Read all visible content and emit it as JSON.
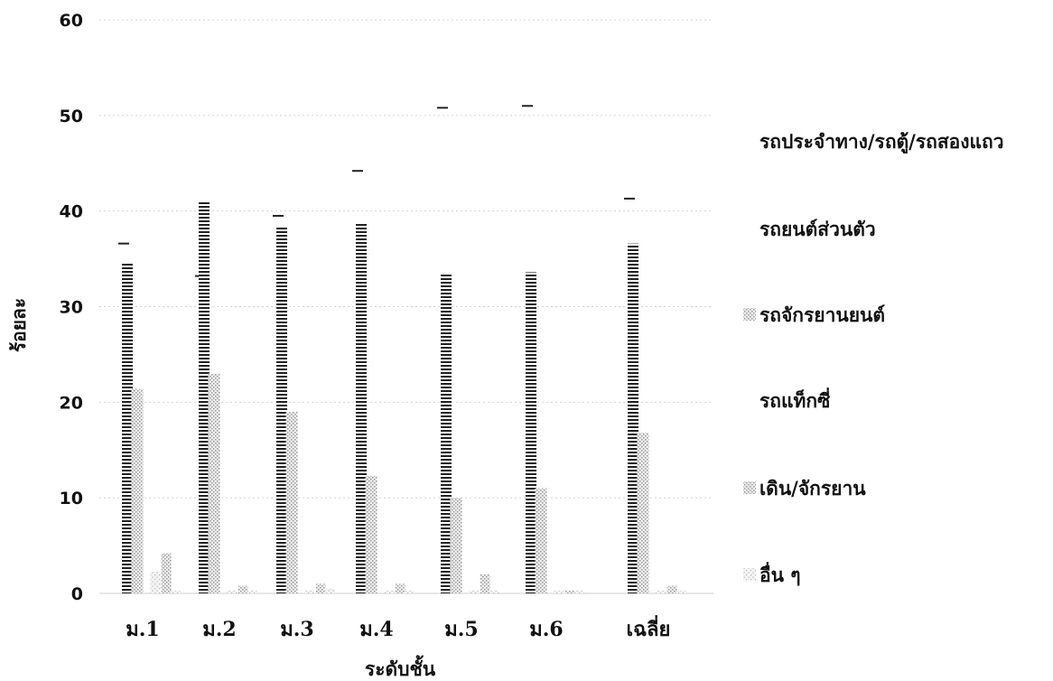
{
  "chart_data": {
    "type": "bar",
    "title": "",
    "xlabel": "ระดับชั้น",
    "ylabel": "ร้อยละ",
    "ylim": [
      0,
      60
    ],
    "yticks": [
      "0",
      "10",
      "20",
      "30",
      "40",
      "50",
      "60"
    ],
    "grid": true,
    "legend_position": "right",
    "categories": [
      "ม.1",
      "ม.2",
      "ม.3",
      "ม.4",
      "ม.5",
      "ม.6",
      "เฉลี่ย"
    ],
    "series": [
      {
        "name": "รถประจำทาง/รถตู้/รถสองแถว",
        "color": "#222222",
        "values": [
          36.6,
          33.2,
          39.5,
          44.2,
          50.8,
          51.0,
          41.3
        ]
      },
      {
        "name": "รถยนต์ส่วนตัว",
        "color": "#333333",
        "values": [
          34.5,
          41.0,
          38.3,
          38.8,
          33.5,
          33.6,
          36.6
        ]
      },
      {
        "name": "รถจักรยานยนต์",
        "color": "#bbbbbb",
        "values": [
          21.4,
          23.0,
          19.0,
          12.3,
          10.0,
          11.0,
          16.8
        ]
      },
      {
        "name": "รถแท็กซี่",
        "color": "#dddddd",
        "values": [
          2.3,
          0.3,
          0.3,
          0.3,
          0.3,
          0.3,
          0.3
        ]
      },
      {
        "name": "เดิน/จักรยาน",
        "color": "#c8c8c8",
        "values": [
          4.2,
          0.8,
          1.0,
          1.0,
          2.0,
          0.3,
          0.8
        ]
      },
      {
        "name": "อื่น ๆ",
        "color": "#e6e6e6",
        "values": [
          0.3,
          0.3,
          0.5,
          0.3,
          0.3,
          0.3,
          0.3
        ]
      }
    ]
  }
}
